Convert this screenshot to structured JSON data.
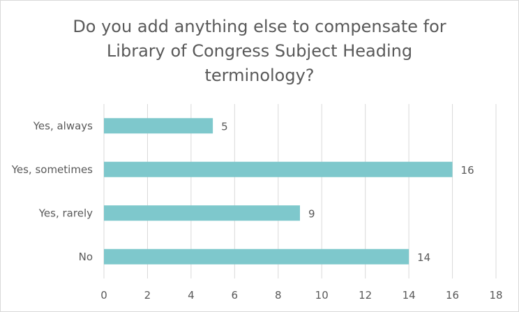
{
  "chart_data": {
    "type": "bar",
    "orientation": "horizontal",
    "title_lines": [
      "Do you add anything else to compensate for",
      "Library of Congress Subject Heading",
      "terminology?"
    ],
    "categories": [
      "Yes, always",
      "Yes, sometimes",
      "Yes, rarely",
      "No"
    ],
    "values": [
      5,
      16,
      9,
      14
    ],
    "data_labels": [
      "5",
      "16",
      "9",
      "14"
    ],
    "x_ticks": [
      "0",
      "2",
      "4",
      "6",
      "8",
      "10",
      "12",
      "14",
      "16",
      "18"
    ],
    "xlim": [
      0,
      18
    ],
    "grid": true,
    "legend": "none",
    "bar_color": "#7ec8cc",
    "grid_color": "#d9d9d9",
    "text_color": "#595959"
  }
}
